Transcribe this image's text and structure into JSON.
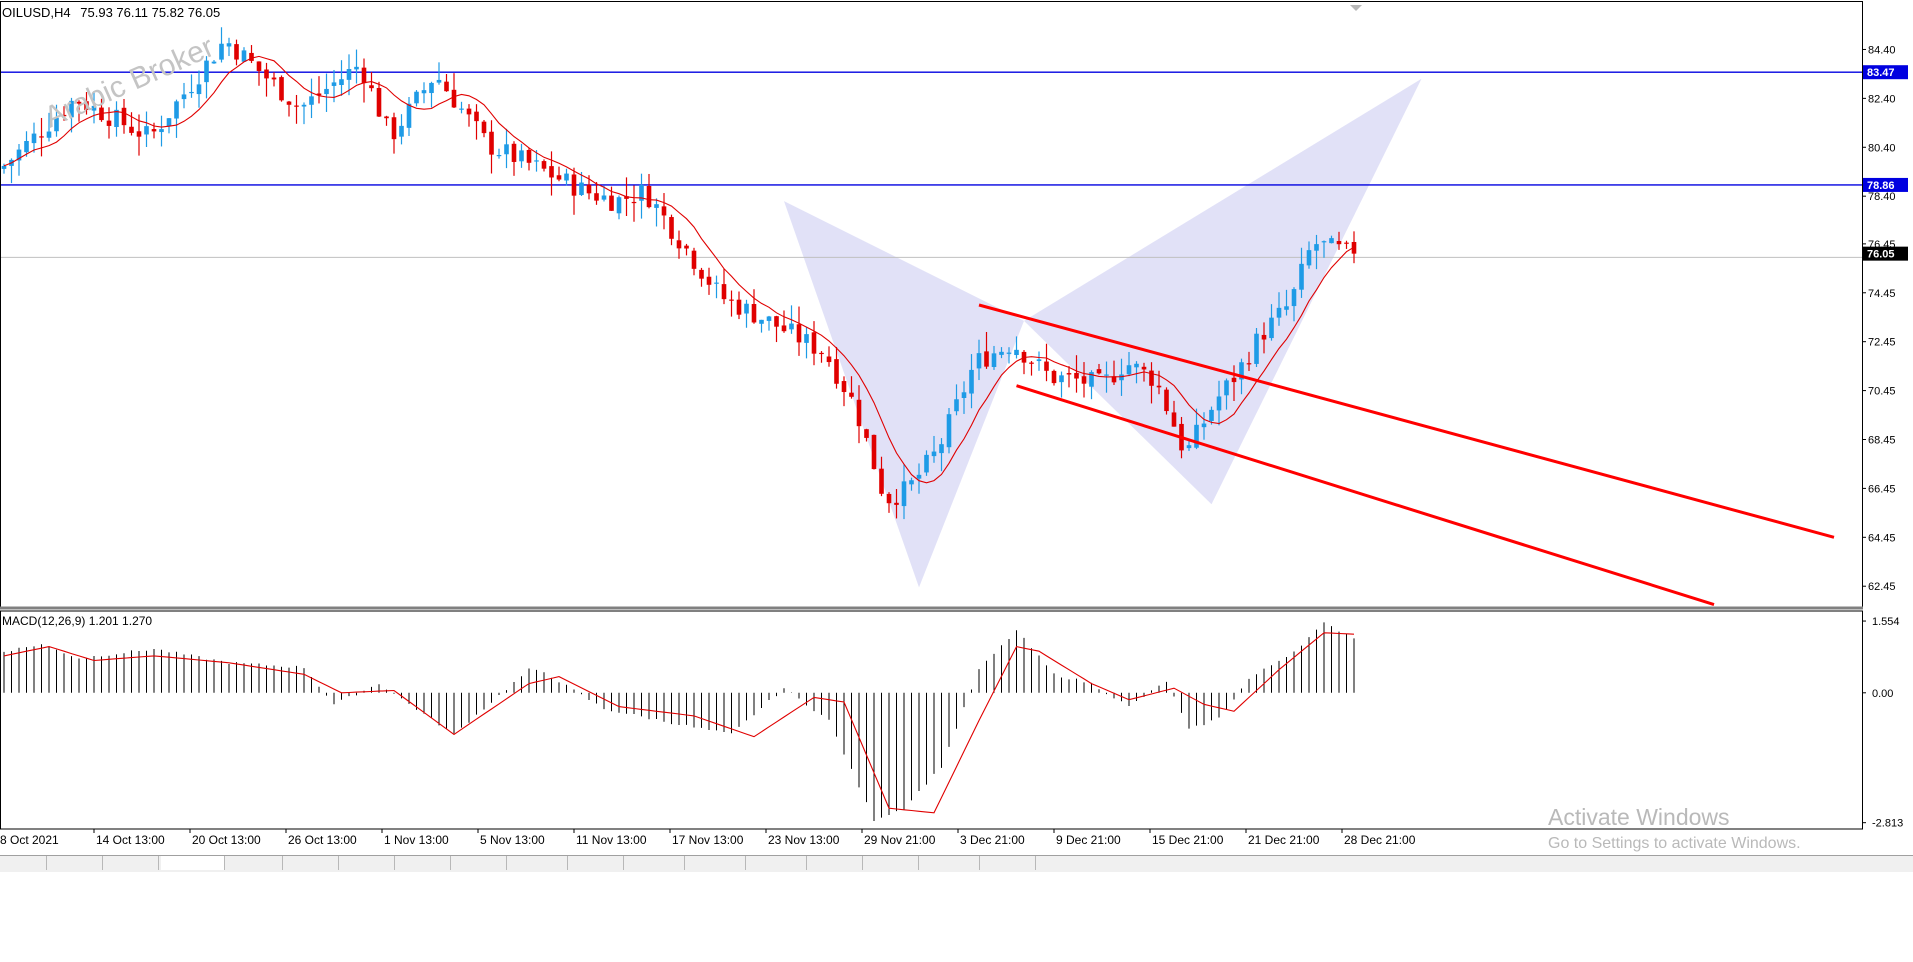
{
  "symbol_header": {
    "symbol": "OILUSD,H4",
    "ohlc": "75.93 76.11 75.82 76.05"
  },
  "watermark": "Arabic Broker",
  "os_watermark": {
    "line1": "Activate Windows",
    "line2": "Go to Settings to activate Windows."
  },
  "colors": {
    "bull": "#1e9be6",
    "bear": "#e00000",
    "ma": "#e00000",
    "hline": "#0000e0",
    "trend": "#ff0000",
    "pattern": "#c8c8f0",
    "macd_hist": "#000000",
    "macd_signal": "#e00000",
    "axis": "#000000"
  },
  "chart_data": [
    {
      "type": "candlestick",
      "title": "OILUSD,H4",
      "ylim": [
        61.6,
        86.3
      ],
      "y_ticks": [
        84.4,
        82.4,
        80.4,
        78.4,
        76.45,
        74.45,
        72.45,
        70.45,
        68.45,
        66.45,
        64.45,
        62.45
      ],
      "price_labels": [
        {
          "value": 83.47,
          "kind": "line"
        },
        {
          "value": 78.86,
          "kind": "line"
        },
        {
          "value": 76.05,
          "kind": "current"
        }
      ],
      "x_ticks": [
        "8 Oct 2021",
        "14 Oct 13:00",
        "20 Oct 13:00",
        "26 Oct 13:00",
        "1 Nov 13:00",
        "5 Nov 13:00",
        "11 Nov 13:00",
        "17 Nov 13:00",
        "23 Nov 13:00",
        "29 Nov 21:00",
        "3 Dec 21:00",
        "9 Dec 21:00",
        "15 Dec 21:00",
        "21 Dec 21:00",
        "28 Dec 21:00"
      ],
      "price_path": [
        [
          0,
          79.5
        ],
        [
          10,
          82.4
        ],
        [
          20,
          80.8
        ],
        [
          30,
          84.8
        ],
        [
          40,
          82.0
        ],
        [
          48,
          83.8
        ],
        [
          52,
          80.8
        ],
        [
          58,
          83.4
        ],
        [
          65,
          80.5
        ],
        [
          72,
          79.5
        ],
        [
          78,
          78.6
        ],
        [
          82,
          78.2
        ],
        [
          86,
          78.6
        ],
        [
          96,
          74.3
        ],
        [
          103,
          73.2
        ],
        [
          110,
          72.0
        ],
        [
          114,
          69.8
        ],
        [
          118,
          66.0
        ],
        [
          121,
          66.4
        ],
        [
          125,
          68.0
        ],
        [
          130,
          71.6
        ],
        [
          135,
          72.4
        ],
        [
          140,
          71.0
        ],
        [
          143,
          70.9
        ],
        [
          147,
          70.7
        ],
        [
          150,
          71.6
        ],
        [
          154,
          70.9
        ],
        [
          157,
          68.7
        ],
        [
          158,
          67.8
        ],
        [
          162,
          70.0
        ],
        [
          165,
          71.2
        ],
        [
          168,
          72.7
        ],
        [
          172,
          74.0
        ],
        [
          175,
          76.5
        ],
        [
          177,
          76.3
        ],
        [
          180,
          76.05
        ]
      ],
      "candle_range": [
        0,
        180
      ],
      "ma_period": 8,
      "horizontal_lines": [
        83.47,
        78.86,
        75.9
      ],
      "trend_channel": [
        {
          "from": [
            130,
            73.95
          ],
          "to": [
            244,
            64.45
          ]
        },
        {
          "from": [
            135,
            70.65
          ],
          "to": [
            228,
            61.7
          ]
        }
      ],
      "harmonic_pattern": {
        "X": [
          104,
          78.2
        ],
        "A": [
          122,
          62.4
        ],
        "B": [
          136,
          73.3
        ],
        "C": [
          161,
          65.8
        ],
        "D": [
          189,
          83.2
        ]
      }
    },
    {
      "type": "bar+line",
      "title": "MACD(12,26,9) 1.201 1.270",
      "ylim": [
        -2.95,
        1.75
      ],
      "y_ticks": [
        1.554,
        0.0,
        -2.813
      ],
      "series": [
        {
          "name": "MACD",
          "path": [
            [
              0,
              0.9
            ],
            [
              5,
              1.05
            ],
            [
              10,
              0.75
            ],
            [
              20,
              0.95
            ],
            [
              30,
              0.65
            ],
            [
              40,
              0.55
            ],
            [
              44,
              -0.25
            ],
            [
              50,
              0.2
            ],
            [
              55,
              -0.35
            ],
            [
              60,
              -0.9
            ],
            [
              70,
              0.5
            ],
            [
              72,
              0.45
            ],
            [
              80,
              -0.35
            ],
            [
              92,
              -0.75
            ],
            [
              97,
              -0.9
            ],
            [
              104,
              0.1
            ],
            [
              110,
              -0.6
            ],
            [
              116,
              -2.75
            ],
            [
              120,
              -2.5
            ],
            [
              125,
              -1.6
            ],
            [
              130,
              0.5
            ],
            [
              135,
              1.35
            ],
            [
              140,
              0.4
            ],
            [
              145,
              0.2
            ],
            [
              150,
              -0.3
            ],
            [
              155,
              0.25
            ],
            [
              158,
              -0.8
            ],
            [
              162,
              -0.55
            ],
            [
              166,
              0.3
            ],
            [
              172,
              0.9
            ],
            [
              176,
              1.5
            ],
            [
              180,
              1.2
            ]
          ]
        },
        {
          "name": "Signal",
          "path": [
            [
              0,
              0.8
            ],
            [
              6,
              1.0
            ],
            [
              12,
              0.7
            ],
            [
              20,
              0.8
            ],
            [
              30,
              0.65
            ],
            [
              40,
              0.4
            ],
            [
              45,
              0.0
            ],
            [
              52,
              0.05
            ],
            [
              60,
              -0.9
            ],
            [
              70,
              0.2
            ],
            [
              74,
              0.35
            ],
            [
              82,
              -0.3
            ],
            [
              92,
              -0.5
            ],
            [
              100,
              -0.95
            ],
            [
              108,
              -0.1
            ],
            [
              112,
              -0.2
            ],
            [
              118,
              -2.5
            ],
            [
              124,
              -2.6
            ],
            [
              130,
              -0.6
            ],
            [
              135,
              1.0
            ],
            [
              138,
              0.9
            ],
            [
              145,
              0.2
            ],
            [
              150,
              -0.15
            ],
            [
              156,
              0.1
            ],
            [
              160,
              -0.25
            ],
            [
              164,
              -0.4
            ],
            [
              170,
              0.5
            ],
            [
              176,
              1.3
            ],
            [
              180,
              1.27
            ]
          ]
        }
      ]
    }
  ]
}
